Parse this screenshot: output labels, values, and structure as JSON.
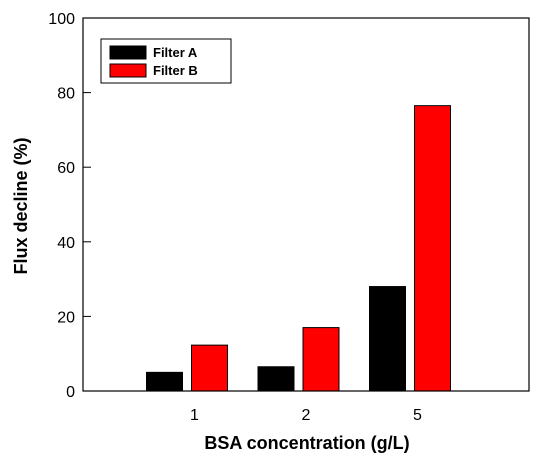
{
  "chart_data": {
    "type": "bar",
    "categories": [
      "1",
      "2",
      "5"
    ],
    "series": [
      {
        "name": "Filter A",
        "values": [
          5,
          6.5,
          28
        ],
        "color": "#000000"
      },
      {
        "name": "Filter B",
        "values": [
          12.3,
          17,
          76.5
        ],
        "color": "#ff0000"
      }
    ],
    "xlabel": "BSA concentration (g/L)",
    "ylabel": "Flux decline (%)",
    "ylim": [
      0,
      100
    ],
    "yticks": [
      0,
      20,
      40,
      60,
      80,
      100
    ],
    "grid": false,
    "legend_position": "top-left"
  }
}
